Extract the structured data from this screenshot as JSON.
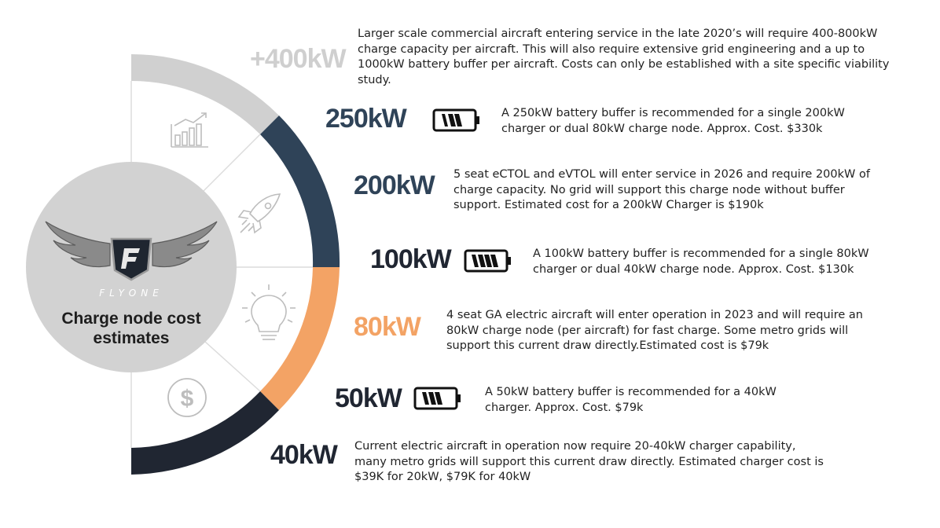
{
  "logo": {
    "brand": "FLYONE",
    "title": "Charge node cost estimates"
  },
  "icons": [
    "bar-chart-icon",
    "rocket-icon",
    "lightbulb-icon",
    "dollar-icon",
    "battery-icon"
  ],
  "colors": {
    "light_gray": "#d0d0d0",
    "navy": "#2f4358",
    "orange": "#f3a365",
    "dark": "#202632",
    "level_gray": "#cfcfcf"
  },
  "tiers": [
    {
      "level": "+400kW",
      "description": "Larger scale commercial aircraft entering service in the late 2020’s will require 400-800kW charge capacity per aircraft. This will also require extensive grid engineering and a up to 1000kW battery buffer per aircraft. Costs can only be established with a site specific viability study."
    },
    {
      "level": "250kW",
      "description": "A 250kW battery buffer is recommended for a single 200kW charger or dual 80kW charge node. Approx. Cost. $330k"
    },
    {
      "level": "200kW",
      "description": "5 seat eCTOL and eVTOL will enter service in 2026 and require 200kW of charge capacity. No grid will support this charge node without buffer support. Estimated cost for a 200kW Charger is $190k"
    },
    {
      "level": "100kW",
      "description": "A 100kW battery buffer is recommended for a single 80kW charger or dual 40kW charge node. Approx. Cost. $130k"
    },
    {
      "level": "80kW",
      "description": "4 seat GA electric aircraft will enter operation in 2023 and will require an 80kW charge node (per aircraft) for fast charge. Some metro grids will support this current draw directly.Estimated cost is $79k"
    },
    {
      "level": "50kW",
      "description": "A 50kW battery buffer is recommended for a 40kW charger. Approx. Cost. $79k"
    },
    {
      "level": "40kW",
      "description": "Current electric aircraft in operation now require 20-40kW charger capability, many metro grids will support this current draw directly. Estimated charger cost is $39K for 20kW, $79K for 40kW"
    }
  ]
}
